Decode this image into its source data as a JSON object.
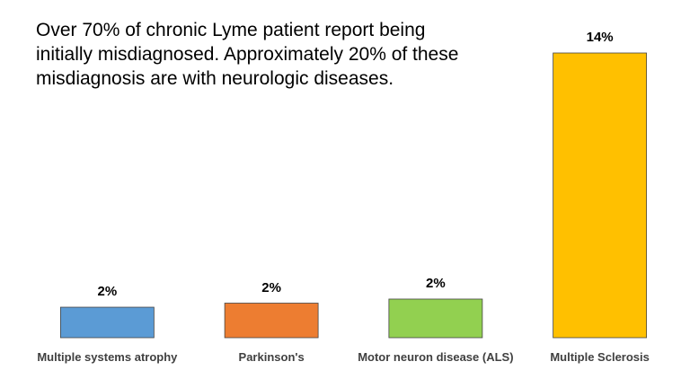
{
  "chart_data": {
    "type": "bar",
    "title": [
      "Over 70% of chronic Lyme patient report being",
      "initially misdiagnosed.  Approximately 20% of these",
      "misdiagnosis are with neurologic diseases."
    ],
    "categories": [
      "Multiple systems atrophy",
      "Parkinson's",
      "Motor neuron disease (ALS)",
      "Multiple Sclerosis"
    ],
    "values": [
      1.5,
      1.7,
      1.9,
      14
    ],
    "value_labels": [
      "2%",
      "2%",
      "2%",
      "14%"
    ],
    "colors": [
      "#5b9bd5",
      "#ed7d31",
      "#92d050",
      "#ffc000"
    ]
  }
}
